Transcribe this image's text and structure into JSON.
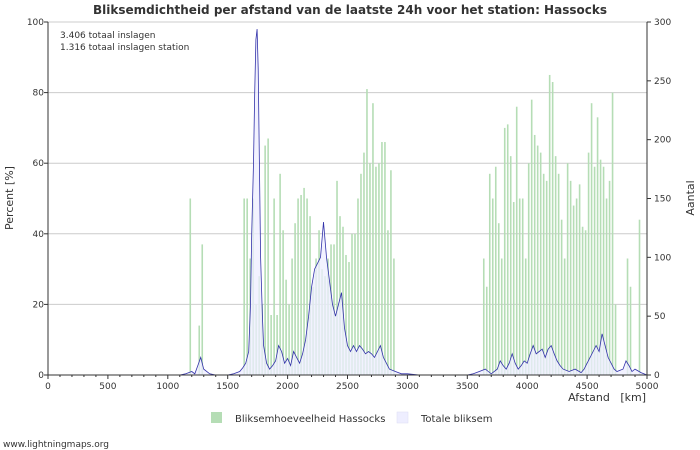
{
  "chart_data": {
    "type": "bar+line",
    "title": "Bliksemdichtheid per afstand van de laatste 24h voor het station: Hassocks",
    "annotations": [
      "3.406 totaal inslagen",
      "1.316 totaal inslagen station"
    ],
    "xlabel": "Afstand   [km]",
    "ylabel_left": "Percent   [%]",
    "ylabel_right": "Aantal",
    "xlim": [
      0,
      5000
    ],
    "ylim_left": [
      0,
      100
    ],
    "ylim_right": [
      0,
      300
    ],
    "x_ticks": [
      0,
      500,
      1000,
      1500,
      2000,
      2500,
      3000,
      3500,
      4000,
      4500,
      5000
    ],
    "y_ticks_left": [
      0,
      20,
      40,
      60,
      80,
      100
    ],
    "y_ticks_right": [
      0,
      50,
      100,
      150,
      200,
      250,
      300
    ],
    "bin_km": 25,
    "series": [
      {
        "name": "Bliksemhoeveelheid Hassocks",
        "type": "bar",
        "axis": "left",
        "color": "#b5ddb5",
        "points": [
          [
            1175,
            50
          ],
          [
            1250,
            14
          ],
          [
            1275,
            37
          ],
          [
            1625,
            50
          ],
          [
            1650,
            50
          ],
          [
            1675,
            33
          ],
          [
            1700,
            50
          ],
          [
            1725,
            20
          ],
          [
            1750,
            28
          ],
          [
            1775,
            20
          ],
          [
            1800,
            65
          ],
          [
            1825,
            67
          ],
          [
            1850,
            17
          ],
          [
            1875,
            50
          ],
          [
            1900,
            17
          ],
          [
            1925,
            57
          ],
          [
            1950,
            41
          ],
          [
            1975,
            27
          ],
          [
            2000,
            20
          ],
          [
            2025,
            33
          ],
          [
            2050,
            43
          ],
          [
            2075,
            50
          ],
          [
            2100,
            51
          ],
          [
            2125,
            53
          ],
          [
            2150,
            50
          ],
          [
            2175,
            45
          ],
          [
            2200,
            25
          ],
          [
            2225,
            33
          ],
          [
            2250,
            41
          ],
          [
            2275,
            30
          ],
          [
            2300,
            28
          ],
          [
            2325,
            33
          ],
          [
            2350,
            37
          ],
          [
            2375,
            37
          ],
          [
            2400,
            55
          ],
          [
            2425,
            45
          ],
          [
            2450,
            42
          ],
          [
            2475,
            34
          ],
          [
            2500,
            32
          ],
          [
            2525,
            40
          ],
          [
            2550,
            40
          ],
          [
            2575,
            50
          ],
          [
            2600,
            57
          ],
          [
            2625,
            63
          ],
          [
            2650,
            81
          ],
          [
            2675,
            60
          ],
          [
            2700,
            77
          ],
          [
            2725,
            59
          ],
          [
            2750,
            60
          ],
          [
            2775,
            66
          ],
          [
            2800,
            66
          ],
          [
            2825,
            41
          ],
          [
            2850,
            58
          ],
          [
            2875,
            33
          ],
          [
            3625,
            33
          ],
          [
            3650,
            25
          ],
          [
            3675,
            57
          ],
          [
            3700,
            50
          ],
          [
            3725,
            59
          ],
          [
            3750,
            43
          ],
          [
            3775,
            33
          ],
          [
            3800,
            70
          ],
          [
            3825,
            71
          ],
          [
            3850,
            62
          ],
          [
            3875,
            49
          ],
          [
            3900,
            76
          ],
          [
            3925,
            50
          ],
          [
            3950,
            50
          ],
          [
            3975,
            33
          ],
          [
            4000,
            60
          ],
          [
            4025,
            78
          ],
          [
            4050,
            68
          ],
          [
            4075,
            65
          ],
          [
            4100,
            63
          ],
          [
            4125,
            57
          ],
          [
            4150,
            55
          ],
          [
            4175,
            85
          ],
          [
            4200,
            83
          ],
          [
            4225,
            62
          ],
          [
            4250,
            57
          ],
          [
            4275,
            44
          ],
          [
            4300,
            33
          ],
          [
            4325,
            60
          ],
          [
            4350,
            55
          ],
          [
            4375,
            48
          ],
          [
            4400,
            50
          ],
          [
            4425,
            54
          ],
          [
            4450,
            42
          ],
          [
            4475,
            41
          ],
          [
            4500,
            63
          ],
          [
            4525,
            77
          ],
          [
            4550,
            59
          ],
          [
            4575,
            73
          ],
          [
            4600,
            61
          ],
          [
            4625,
            59
          ],
          [
            4650,
            50
          ],
          [
            4675,
            55
          ],
          [
            4700,
            80
          ],
          [
            4725,
            20
          ],
          [
            4825,
            33
          ],
          [
            4850,
            25
          ],
          [
            4925,
            44
          ]
        ]
      },
      {
        "name": "Totale bliksem",
        "type": "line",
        "axis": "right",
        "color": "#3333aa",
        "fill": "#eeeeff",
        "points": [
          [
            0,
            0
          ],
          [
            1100,
            0
          ],
          [
            1150,
            1
          ],
          [
            1200,
            3
          ],
          [
            1225,
            1
          ],
          [
            1250,
            8
          ],
          [
            1275,
            15
          ],
          [
            1300,
            5
          ],
          [
            1350,
            1
          ],
          [
            1400,
            0
          ],
          [
            1500,
            0
          ],
          [
            1550,
            1
          ],
          [
            1600,
            3
          ],
          [
            1625,
            6
          ],
          [
            1650,
            10
          ],
          [
            1675,
            20
          ],
          [
            1690,
            60
          ],
          [
            1700,
            120
          ],
          [
            1715,
            180
          ],
          [
            1725,
            240
          ],
          [
            1735,
            285
          ],
          [
            1745,
            294
          ],
          [
            1755,
            260
          ],
          [
            1765,
            180
          ],
          [
            1775,
            100
          ],
          [
            1790,
            50
          ],
          [
            1800,
            25
          ],
          [
            1825,
            10
          ],
          [
            1850,
            5
          ],
          [
            1875,
            8
          ],
          [
            1900,
            12
          ],
          [
            1925,
            25
          ],
          [
            1950,
            20
          ],
          [
            1975,
            10
          ],
          [
            2000,
            14
          ],
          [
            2025,
            8
          ],
          [
            2050,
            20
          ],
          [
            2075,
            15
          ],
          [
            2100,
            10
          ],
          [
            2125,
            18
          ],
          [
            2150,
            30
          ],
          [
            2175,
            50
          ],
          [
            2200,
            75
          ],
          [
            2225,
            90
          ],
          [
            2250,
            95
          ],
          [
            2275,
            100
          ],
          [
            2300,
            130
          ],
          [
            2325,
            100
          ],
          [
            2350,
            80
          ],
          [
            2375,
            60
          ],
          [
            2400,
            50
          ],
          [
            2425,
            60
          ],
          [
            2450,
            70
          ],
          [
            2475,
            40
          ],
          [
            2500,
            25
          ],
          [
            2525,
            20
          ],
          [
            2550,
            25
          ],
          [
            2575,
            20
          ],
          [
            2600,
            25
          ],
          [
            2625,
            22
          ],
          [
            2650,
            18
          ],
          [
            2675,
            20
          ],
          [
            2700,
            18
          ],
          [
            2725,
            15
          ],
          [
            2750,
            20
          ],
          [
            2775,
            25
          ],
          [
            2800,
            15
          ],
          [
            2825,
            10
          ],
          [
            2850,
            5
          ],
          [
            2900,
            3
          ],
          [
            2950,
            1
          ],
          [
            3000,
            1
          ],
          [
            3100,
            0
          ],
          [
            3500,
            0
          ],
          [
            3550,
            1
          ],
          [
            3600,
            3
          ],
          [
            3650,
            5
          ],
          [
            3675,
            3
          ],
          [
            3700,
            1
          ],
          [
            3750,
            5
          ],
          [
            3775,
            12
          ],
          [
            3800,
            8
          ],
          [
            3825,
            5
          ],
          [
            3850,
            10
          ],
          [
            3875,
            18
          ],
          [
            3900,
            10
          ],
          [
            3925,
            5
          ],
          [
            3950,
            8
          ],
          [
            3975,
            12
          ],
          [
            4000,
            10
          ],
          [
            4025,
            18
          ],
          [
            4050,
            25
          ],
          [
            4075,
            18
          ],
          [
            4100,
            20
          ],
          [
            4125,
            22
          ],
          [
            4150,
            15
          ],
          [
            4175,
            22
          ],
          [
            4200,
            25
          ],
          [
            4225,
            18
          ],
          [
            4250,
            12
          ],
          [
            4275,
            8
          ],
          [
            4300,
            5
          ],
          [
            4350,
            3
          ],
          [
            4400,
            5
          ],
          [
            4450,
            2
          ],
          [
            4475,
            5
          ],
          [
            4500,
            10
          ],
          [
            4525,
            15
          ],
          [
            4550,
            20
          ],
          [
            4575,
            25
          ],
          [
            4600,
            20
          ],
          [
            4625,
            35
          ],
          [
            4650,
            25
          ],
          [
            4675,
            15
          ],
          [
            4700,
            10
          ],
          [
            4725,
            5
          ],
          [
            4750,
            3
          ],
          [
            4800,
            5
          ],
          [
            4825,
            12
          ],
          [
            4850,
            8
          ],
          [
            4875,
            3
          ],
          [
            4900,
            5
          ],
          [
            4950,
            2
          ],
          [
            5000,
            0
          ]
        ]
      }
    ],
    "legend": [
      "Bliksemhoeveelheid Hassocks",
      "Totale bliksem"
    ],
    "legend_position": "bottom"
  },
  "footer": "www.lightningmaps.org"
}
